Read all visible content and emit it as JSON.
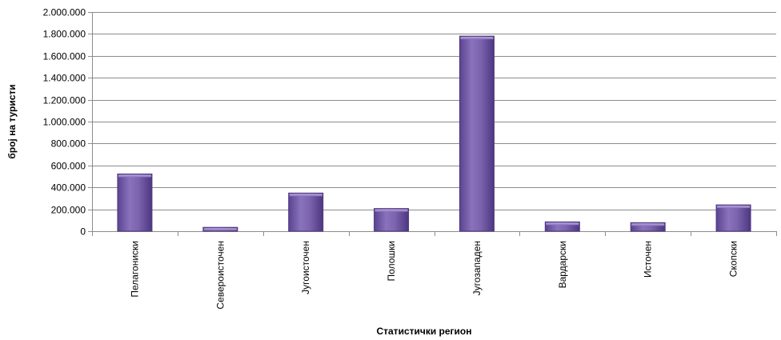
{
  "chart_data": {
    "type": "bar",
    "categories": [
      "Пелагониски",
      "Североисточен",
      "Југоисточен",
      "Полошки",
      "Југозападен",
      "Вардарски",
      "Источен",
      "Скопски"
    ],
    "values": [
      522000,
      35000,
      348000,
      207000,
      1780000,
      85000,
      78000,
      240000
    ],
    "xlabel": "Статистички  регион",
    "ylabel": "број на туристи",
    "ylim": [
      0,
      2000000
    ],
    "yticks": [
      0,
      200000,
      400000,
      600000,
      800000,
      1000000,
      1200000,
      1400000,
      1600000,
      1800000,
      2000000
    ],
    "ytick_labels": [
      "0",
      "200.000",
      "400.000",
      "600.000",
      "800.000",
      "1.000.000",
      "1.200.000",
      "1.400.000",
      "1.600.000",
      "1.800.000",
      "2.000.000"
    ],
    "grid": true,
    "legend": "none",
    "colors": {
      "bar": "#7B62A9",
      "bar_dark": "#4E3880",
      "bar_light": "#9C86C8",
      "grid": "#8C8C8C",
      "axis": "#8C8C8C"
    }
  }
}
